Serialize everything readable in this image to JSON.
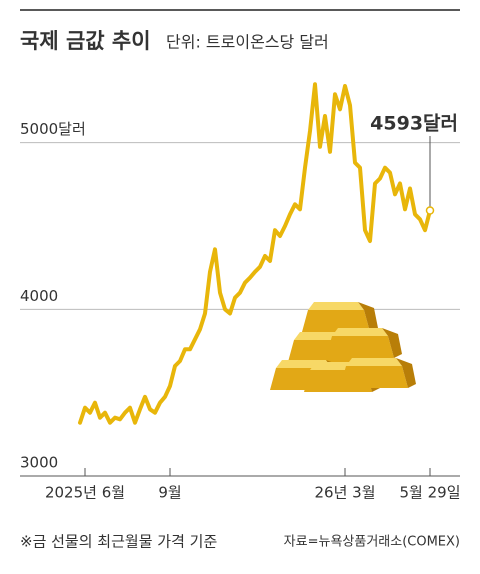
{
  "chart_data": {
    "type": "line",
    "title": "국제 금값 추이",
    "subtitle": "단위: 트로이온스당 달러",
    "categories": [
      null,
      "2025년 6월",
      null,
      null,
      null,
      null,
      null,
      null,
      null,
      null,
      null,
      null,
      null,
      null,
      null,
      null,
      null,
      null,
      "9월",
      null,
      null,
      null,
      null,
      null,
      null,
      null,
      null,
      null,
      null,
      null,
      null,
      null,
      null,
      null,
      null,
      null,
      null,
      null,
      null,
      null,
      null,
      null,
      null,
      null,
      null,
      null,
      null,
      null,
      null,
      null,
      null,
      null,
      null,
      "26년 3월",
      null,
      null,
      null,
      null,
      null,
      null,
      null,
      null,
      null,
      null,
      null,
      null,
      null,
      null,
      null,
      null,
      "5월 29일"
    ],
    "values": [
      3320,
      3410,
      3380,
      3440,
      3350,
      3380,
      3320,
      3350,
      3340,
      3380,
      3410,
      3320,
      3400,
      3475,
      3400,
      3380,
      3440,
      3475,
      3540,
      3660,
      3690,
      3760,
      3760,
      3820,
      3880,
      3975,
      4225,
      4360,
      4100,
      4000,
      3975,
      4070,
      4100,
      4160,
      4190,
      4225,
      4255,
      4320,
      4290,
      4475,
      4440,
      4500,
      4570,
      4630,
      4600,
      4850,
      5070,
      5350,
      4975,
      5160,
      4945,
      5290,
      5200,
      5340,
      5225,
      4880,
      4850,
      4475,
      4410,
      4755,
      4785,
      4850,
      4820,
      4690,
      4755,
      4600,
      4725,
      4570,
      4540,
      4475,
      4593
    ],
    "color": "#e8b60a",
    "ylim": [
      3000,
      5400
    ],
    "yticks": [
      3000,
      4000,
      {
        "value": 5000,
        "label": "5000달러"
      }
    ],
    "grid": true,
    "annotation": "4593달러",
    "note": "※금 선물의 최근월물 가격 기준",
    "source": "자료=뉴욕상품거래소(COMEX)"
  }
}
